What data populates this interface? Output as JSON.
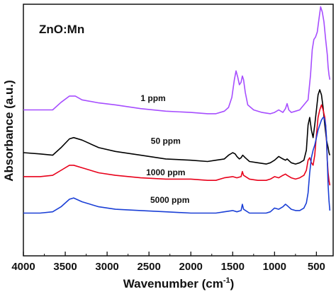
{
  "chart_data": {
    "type": "line",
    "title": "",
    "annotation": "ZnO:Mn",
    "xlabel": "Wavenumber (cm",
    "xlabel_sup": "-1",
    "xlabel_suffix": ")",
    "ylabel": "Absorbance (a.u.)",
    "xlim": [
      4000,
      300
    ],
    "ylim": [
      0,
      1
    ],
    "x_ticks": [
      4000,
      3500,
      3000,
      2500,
      2000,
      1500,
      1000,
      500
    ],
    "y_ticks_labeled": false,
    "grid": false,
    "colors": {
      "1 ppm": "#a64dff",
      "50 ppm": "#000000",
      "1000 ppm": "#e8001a",
      "5000 ppm": "#1a3fd6"
    },
    "series": [
      {
        "name": "1 ppm",
        "label_at": [
          2450,
          0.615
        ],
        "x": [
          4000,
          3800,
          3650,
          3550,
          3450,
          3380,
          3300,
          3100,
          2900,
          2600,
          2300,
          2000,
          1800,
          1700,
          1600,
          1550,
          1510,
          1480,
          1460,
          1440,
          1420,
          1400,
          1385,
          1370,
          1350,
          1320,
          1250,
          1150,
          1050,
          1000,
          950,
          900,
          870,
          850,
          830,
          800,
          750,
          700,
          650,
          600,
          570,
          550,
          530,
          510,
          490,
          470,
          450,
          430,
          410,
          390,
          370,
          360,
          350,
          340
        ],
        "y": [
          0.58,
          0.58,
          0.58,
          0.61,
          0.635,
          0.635,
          0.62,
          0.608,
          0.6,
          0.585,
          0.575,
          0.57,
          0.565,
          0.565,
          0.575,
          0.59,
          0.63,
          0.7,
          0.735,
          0.71,
          0.68,
          0.69,
          0.715,
          0.7,
          0.65,
          0.6,
          0.58,
          0.57,
          0.565,
          0.57,
          0.58,
          0.57,
          0.585,
          0.605,
          0.58,
          0.57,
          0.575,
          0.58,
          0.6,
          0.62,
          0.72,
          0.82,
          0.86,
          0.87,
          0.89,
          0.94,
          0.99,
          0.97,
          0.93,
          0.86,
          0.8,
          0.75,
          0.72,
          0.7
        ]
      },
      {
        "name": "50 ppm",
        "label_at": [
          2300,
          0.445
        ],
        "x": [
          4000,
          3800,
          3650,
          3550,
          3450,
          3400,
          3300,
          3100,
          2900,
          2600,
          2300,
          2000,
          1800,
          1700,
          1600,
          1550,
          1500,
          1470,
          1450,
          1420,
          1400,
          1380,
          1350,
          1300,
          1200,
          1100,
          1050,
          1000,
          950,
          900,
          870,
          850,
          800,
          750,
          700,
          650,
          620,
          600,
          580,
          560,
          540,
          520,
          500,
          480,
          460,
          440,
          420,
          400,
          380,
          360,
          350,
          340
        ],
        "y": [
          0.41,
          0.405,
          0.4,
          0.43,
          0.465,
          0.47,
          0.46,
          0.43,
          0.415,
          0.4,
          0.385,
          0.38,
          0.375,
          0.38,
          0.385,
          0.4,
          0.41,
          0.405,
          0.395,
          0.385,
          0.39,
          0.4,
          0.39,
          0.375,
          0.37,
          0.365,
          0.37,
          0.38,
          0.395,
          0.385,
          0.38,
          0.385,
          0.37,
          0.365,
          0.37,
          0.38,
          0.42,
          0.52,
          0.55,
          0.5,
          0.47,
          0.52,
          0.58,
          0.64,
          0.66,
          0.64,
          0.59,
          0.52,
          0.46,
          0.43,
          0.41,
          0.4
        ]
      },
      {
        "name": "1000 ppm",
        "label_at": [
          2300,
          0.32
        ],
        "x": [
          4000,
          3800,
          3650,
          3550,
          3450,
          3400,
          3300,
          3100,
          2900,
          2600,
          2300,
          2000,
          1800,
          1700,
          1600,
          1500,
          1450,
          1400,
          1385,
          1370,
          1300,
          1200,
          1100,
          1050,
          1000,
          950,
          900,
          870,
          850,
          800,
          750,
          700,
          650,
          620,
          600,
          580,
          560,
          540,
          520,
          500,
          480,
          460,
          440,
          420,
          400,
          390,
          380,
          370,
          360,
          350,
          340
        ],
        "y": [
          0.315,
          0.315,
          0.32,
          0.34,
          0.36,
          0.36,
          0.35,
          0.33,
          0.32,
          0.31,
          0.305,
          0.305,
          0.3,
          0.3,
          0.31,
          0.315,
          0.31,
          0.315,
          0.335,
          0.32,
          0.305,
          0.3,
          0.3,
          0.305,
          0.315,
          0.31,
          0.32,
          0.325,
          0.32,
          0.31,
          0.305,
          0.31,
          0.32,
          0.34,
          0.38,
          0.39,
          0.37,
          0.36,
          0.4,
          0.48,
          0.55,
          0.58,
          0.6,
          0.58,
          0.55,
          0.52,
          0.46,
          0.38,
          0.33,
          0.3,
          0.28
        ]
      },
      {
        "name": "5000 ppm",
        "label_at": [
          2250,
          0.21
        ],
        "x": [
          4000,
          3800,
          3650,
          3550,
          3450,
          3400,
          3300,
          3100,
          2900,
          2600,
          2300,
          2000,
          1800,
          1700,
          1600,
          1500,
          1450,
          1400,
          1385,
          1370,
          1300,
          1200,
          1100,
          1050,
          1000,
          950,
          900,
          870,
          850,
          800,
          750,
          700,
          650,
          620,
          600,
          580,
          560,
          540,
          520,
          500,
          480,
          460,
          440,
          420,
          410,
          400,
          390,
          380,
          370,
          360,
          350,
          340
        ],
        "y": [
          0.17,
          0.17,
          0.175,
          0.195,
          0.225,
          0.23,
          0.215,
          0.195,
          0.185,
          0.18,
          0.175,
          0.17,
          0.17,
          0.17,
          0.175,
          0.18,
          0.175,
          0.18,
          0.205,
          0.185,
          0.17,
          0.17,
          0.17,
          0.175,
          0.19,
          0.185,
          0.195,
          0.205,
          0.2,
          0.185,
          0.18,
          0.18,
          0.19,
          0.21,
          0.25,
          0.33,
          0.39,
          0.42,
          0.44,
          0.47,
          0.5,
          0.52,
          0.54,
          0.55,
          0.55,
          0.54,
          0.52,
          0.47,
          0.38,
          0.28,
          0.22,
          0.18
        ]
      }
    ]
  }
}
